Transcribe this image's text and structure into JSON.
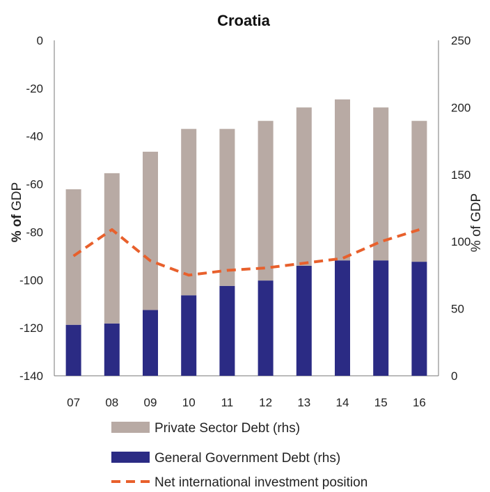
{
  "chart_data": {
    "type": "bar",
    "title": "Croatia",
    "categories": [
      "07",
      "08",
      "09",
      "10",
      "11",
      "12",
      "13",
      "14",
      "15",
      "16"
    ],
    "series": [
      {
        "name": "General Government Debt (rhs)",
        "kind": "bar",
        "axis": "right",
        "values": [
          38,
          39,
          49,
          60,
          67,
          71,
          82,
          86,
          86,
          85
        ],
        "color": "#2b2b84"
      },
      {
        "name": "Private Sector Debt (rhs)",
        "kind": "bar",
        "axis": "right",
        "stacked": true,
        "values": [
          101,
          112,
          118,
          124,
          117,
          119,
          118,
          120,
          114,
          105
        ],
        "color": "#b8aaa4"
      },
      {
        "name": "Net international investment position",
        "kind": "line",
        "axis": "left",
        "dashed": true,
        "values": [
          -90,
          -79,
          -92,
          -98,
          -96,
          -95,
          -93,
          -91,
          -84,
          -79
        ],
        "color": "#e8602c"
      }
    ],
    "yleft": {
      "label_bold": "% of",
      "label_rest": " GDP",
      "lim": [
        -140,
        0
      ],
      "ticks": [
        "0",
        "-20",
        "-40",
        "-60",
        "-80",
        "-100",
        "-120",
        "-140"
      ]
    },
    "yright": {
      "label": "% of GDP",
      "lim": [
        0,
        250
      ],
      "ticks": [
        "250",
        "200",
        "150",
        "100",
        "50",
        "0"
      ]
    },
    "legend_position": "bottom"
  }
}
